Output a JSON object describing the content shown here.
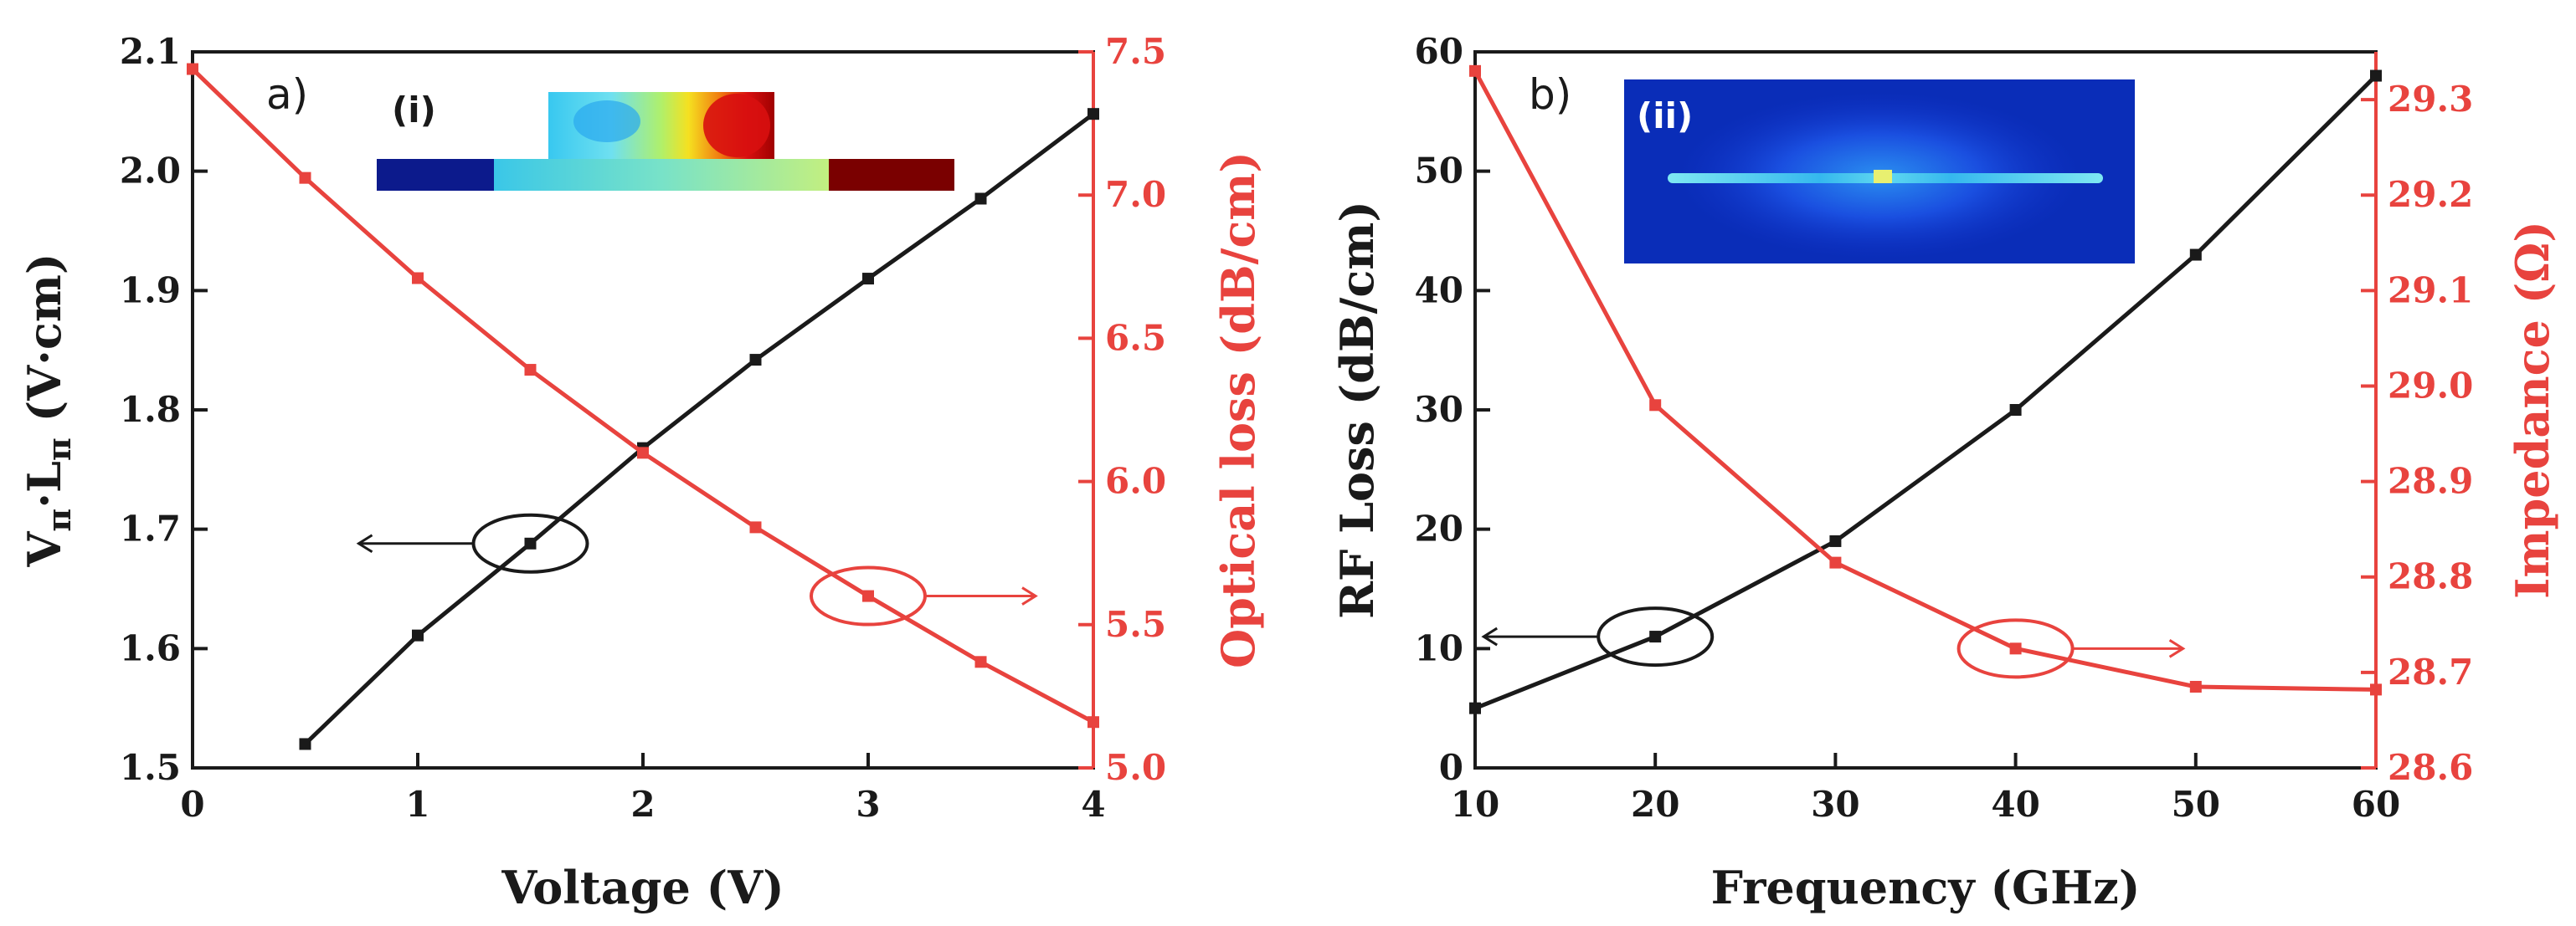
{
  "colors": {
    "black_series": "#1a1a1a",
    "red_series": "#e8433e",
    "background": "#ffffff"
  },
  "chart_data": [
    {
      "type": "line",
      "panel_label": "a)",
      "inset_label": "(i)",
      "xlabel": "Voltage (V)",
      "ylabel": "Vπ·Lπ (V·cm)",
      "ylabel_parts": {
        "v": "V",
        "sub1": "π",
        "dot": "·",
        "l": "L",
        "sub2": "π",
        "unit": " (V·cm)"
      },
      "y2label": "Optical loss (dB/cm)",
      "xlim": [
        0,
        4
      ],
      "ylim": [
        1.5,
        2.1
      ],
      "y2lim": [
        5.0,
        7.5
      ],
      "xticks": [
        0,
        1,
        2,
        3,
        4
      ],
      "yticks": [
        1.5,
        1.6,
        1.7,
        1.8,
        1.9,
        2.0,
        2.1
      ],
      "y2ticks": [
        5.0,
        5.5,
        6.0,
        6.5,
        7.0,
        7.5
      ],
      "xtick_labels": [
        "0",
        "1",
        "2",
        "3",
        "4"
      ],
      "ytick_labels": [
        "1.5",
        "1.6",
        "1.7",
        "1.8",
        "1.9",
        "2.0",
        "2.1"
      ],
      "y2tick_labels": [
        "5.0",
        "5.5",
        "6.0",
        "6.5",
        "7.0",
        "7.5"
      ],
      "series": [
        {
          "axis": "left",
          "color": "#1a1a1a",
          "x": [
            0.5,
            1.0,
            1.5,
            2.0,
            2.5,
            3.0,
            3.5,
            4.0
          ],
          "values": [
            1.52,
            1.611,
            1.688,
            1.768,
            1.842,
            1.91,
            1.977,
            2.048
          ]
        },
        {
          "axis": "right",
          "color": "#e8433e",
          "x": [
            0.0,
            0.5,
            1.0,
            1.5,
            2.0,
            2.5,
            3.0,
            3.5,
            4.0
          ],
          "values": [
            7.44,
            7.06,
            6.71,
            6.39,
            6.1,
            5.84,
            5.6,
            5.37,
            5.16
          ]
        }
      ],
      "annotations": [
        {
          "color": "black",
          "ellipse_center": [
            1.5,
            1.688
          ],
          "arrow_direction": "left"
        },
        {
          "color": "red",
          "ellipse_center": [
            3.0,
            5.6
          ],
          "arrow_direction": "right"
        }
      ],
      "grid": false
    },
    {
      "type": "line",
      "panel_label": "b)",
      "inset_label": "(ii)",
      "xlabel": "Frequency (GHz)",
      "ylabel": "RF Loss (dB/cm)",
      "y2label": "Impedance (Ω)",
      "xlim": [
        10,
        60
      ],
      "ylim": [
        0,
        60
      ],
      "y2lim": [
        28.6,
        29.35
      ],
      "xticks": [
        10,
        20,
        30,
        40,
        50,
        60
      ],
      "yticks": [
        0,
        10,
        20,
        30,
        40,
        50,
        60
      ],
      "y2ticks": [
        28.6,
        28.7,
        28.8,
        28.9,
        29.0,
        29.1,
        29.2,
        29.3
      ],
      "xtick_labels": [
        "10",
        "20",
        "30",
        "40",
        "50",
        "60"
      ],
      "ytick_labels": [
        "0",
        "10",
        "20",
        "30",
        "40",
        "50",
        "60"
      ],
      "y2tick_labels": [
        "28.6",
        "28.7",
        "28.8",
        "28.9",
        "29.0",
        "29.1",
        "29.2",
        "29.3"
      ],
      "series": [
        {
          "axis": "left",
          "color": "#1a1a1a",
          "x": [
            10,
            20,
            30,
            40,
            50,
            60
          ],
          "values": [
            5,
            11,
            19,
            30,
            43,
            58
          ]
        },
        {
          "axis": "right",
          "color": "#e8433e",
          "x": [
            10,
            20,
            30,
            40,
            50,
            60
          ],
          "values": [
            29.33,
            28.98,
            28.815,
            28.725,
            28.685,
            28.682
          ]
        }
      ],
      "annotations": [
        {
          "color": "black",
          "ellipse_center": [
            20,
            11
          ],
          "arrow_direction": "left"
        },
        {
          "color": "red",
          "ellipse_center": [
            40,
            28.725
          ],
          "arrow_direction": "right"
        }
      ],
      "grid": false
    }
  ]
}
